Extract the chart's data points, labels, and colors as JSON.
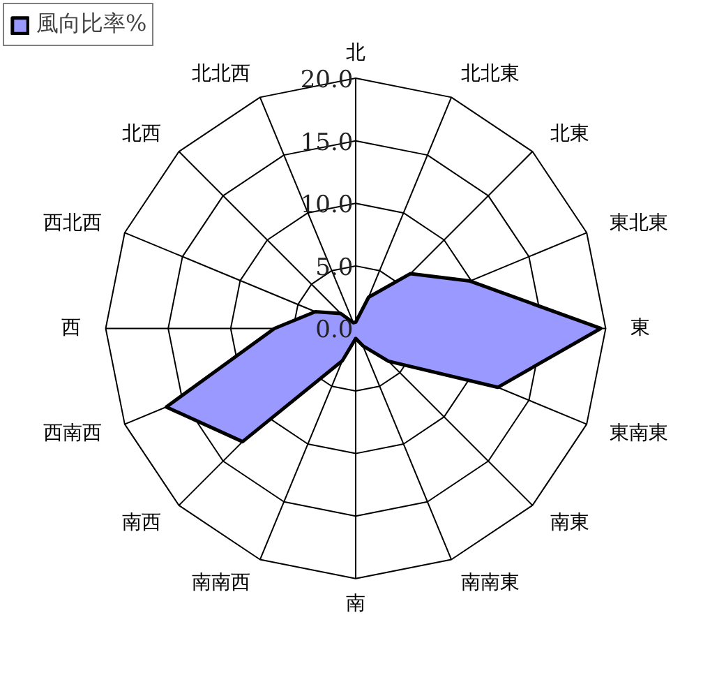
{
  "chart_data": {
    "type": "radar",
    "categories": [
      "北",
      "北北東",
      "北東",
      "東北東",
      "東",
      "東南東",
      "南東",
      "南南東",
      "南",
      "南南西",
      "南西",
      "西南西",
      "西",
      "西北西",
      "北西",
      "北北西"
    ],
    "series": [
      {
        "name": "風向比率%",
        "color": "#9999ff",
        "values": [
          0.5,
          2.7,
          6.2,
          9.9,
          19.6,
          12.3,
          3.7,
          1.5,
          0.8,
          2.8,
          12.8,
          16.4,
          6.5,
          3.5,
          1.7,
          0.5
        ]
      }
    ],
    "ylim": [
      0,
      20
    ],
    "yticks": [
      {
        "value": 0,
        "label": "0.0"
      },
      {
        "value": 5,
        "label": "5.0"
      },
      {
        "value": 10,
        "label": "10.0"
      },
      {
        "value": 15,
        "label": "15.0"
      },
      {
        "value": 20,
        "label": "20.0"
      }
    ],
    "grid": true,
    "legend": "top left"
  }
}
